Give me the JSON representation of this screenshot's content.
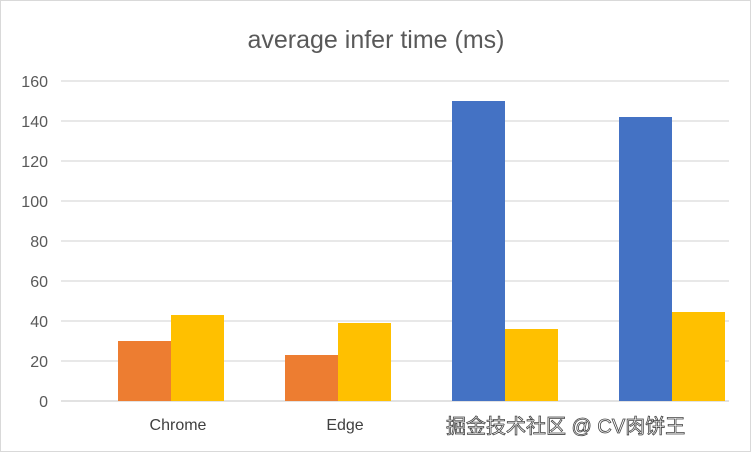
{
  "chart_data": {
    "type": "bar",
    "title": "average infer time (ms)",
    "categories": [
      "Chrome",
      "Edge",
      "",
      ""
    ],
    "series": [
      {
        "color": "#4472C4",
        "values": [
          null,
          null,
          150,
          142
        ]
      },
      {
        "color": "#ED7D31",
        "values": [
          30,
          23,
          null,
          null
        ]
      },
      {
        "color": "#FFC000",
        "values": [
          43,
          39,
          36,
          44.5
        ]
      }
    ],
    "ylim": [
      0,
      160
    ],
    "yticks": [
      0,
      20,
      40,
      60,
      80,
      100,
      120,
      140,
      160
    ],
    "grid": true,
    "legend": "none"
  },
  "watermark": "掘金技术社区 @ CV肉饼王"
}
